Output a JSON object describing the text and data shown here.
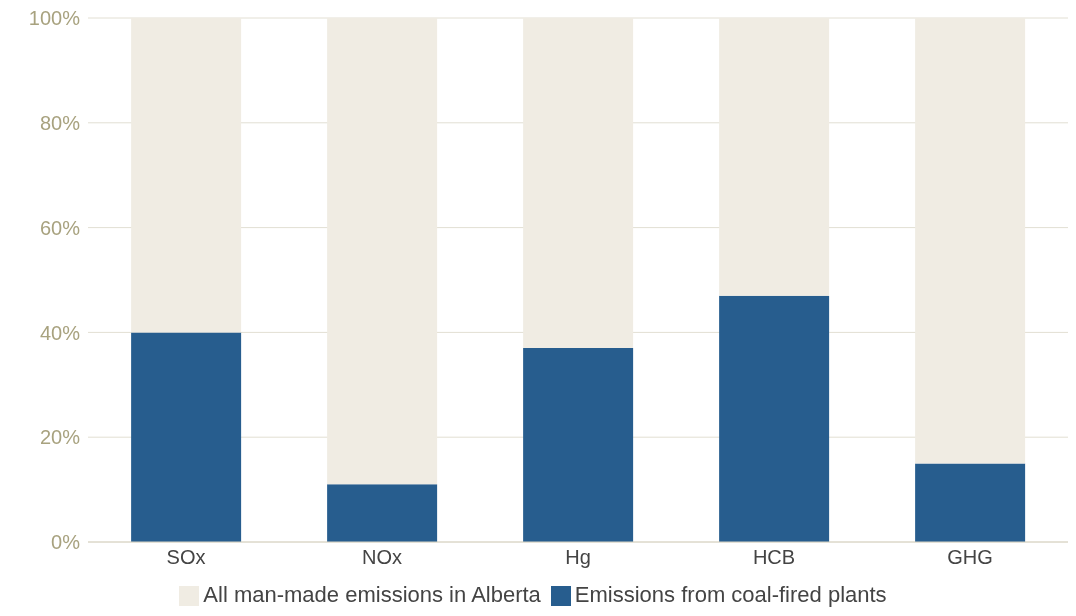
{
  "chart_data": {
    "type": "bar",
    "stacked": true,
    "categories": [
      "SOx",
      "NOx",
      "Hg",
      "HCB",
      "GHG"
    ],
    "series": [
      {
        "name": "Emissions from coal-fired plants",
        "color": "#275d8e",
        "values": [
          40,
          11,
          37,
          47,
          15
        ]
      },
      {
        "name": "All man-made emissions in Alberta",
        "color": "#f0ece3",
        "values": [
          60,
          89,
          63,
          53,
          85
        ]
      }
    ],
    "ylim": [
      0,
      100
    ],
    "yticks": [
      {
        "value": 0,
        "label": "0%"
      },
      {
        "value": 20,
        "label": "20%"
      },
      {
        "value": 40,
        "label": "40%"
      },
      {
        "value": 60,
        "label": "60%"
      },
      {
        "value": 80,
        "label": "80%"
      },
      {
        "value": 100,
        "label": "100%"
      }
    ],
    "grid": "y",
    "legend": "bottom"
  }
}
